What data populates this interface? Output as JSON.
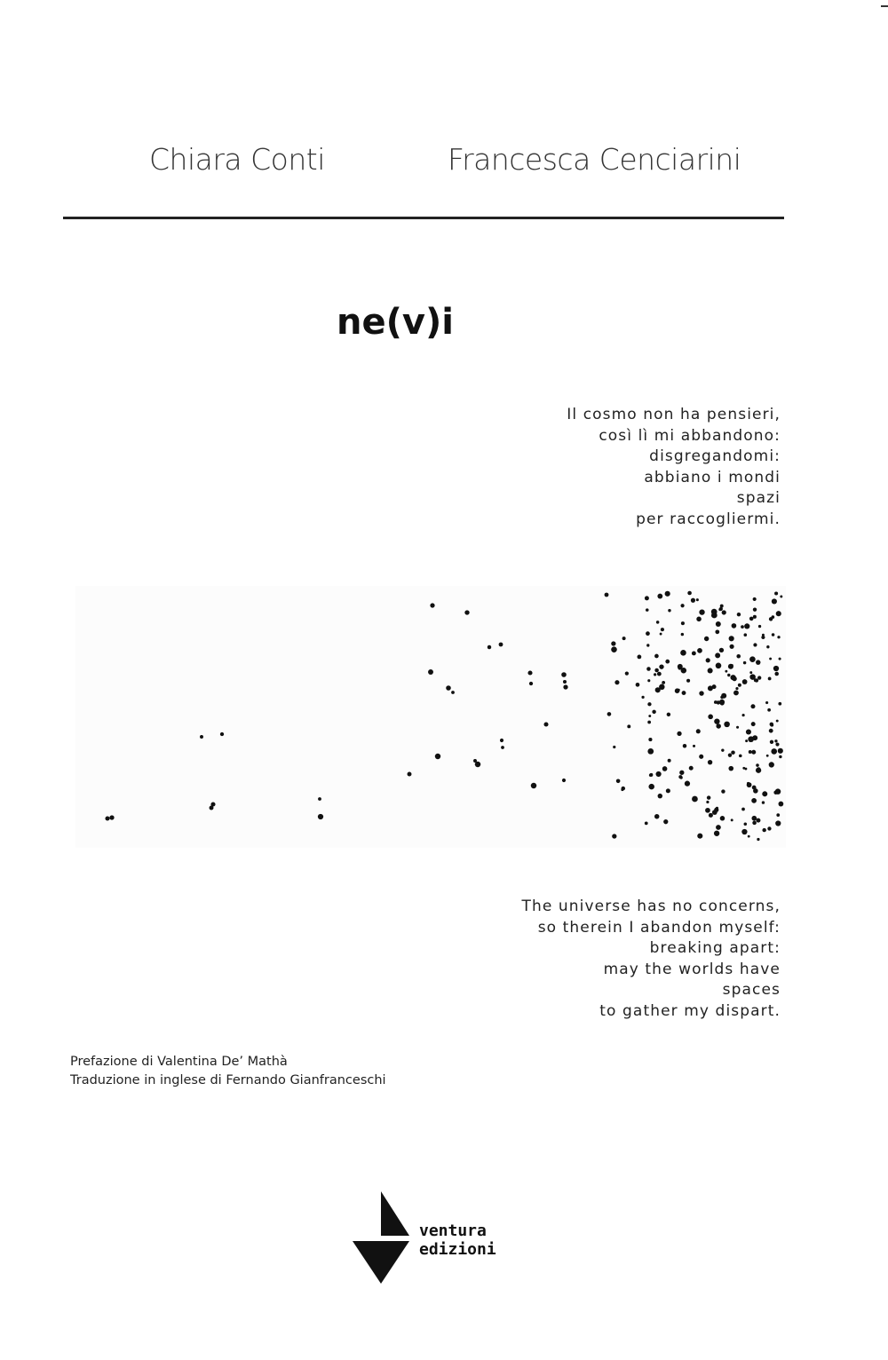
{
  "cover": {
    "authors": [
      "Chiara Conti",
      "Francesca Cenciarini"
    ],
    "title": "ne(v)i",
    "poem_italian": [
      "Il cosmo non ha pensieri,",
      "così lì mi abbandono:",
      "disgregandomi:",
      "abbiano i mondi",
      "spazi",
      "per raccogliermi."
    ],
    "poem_english": [
      "The universe has no concerns,",
      "so therein I abandon myself:",
      "breaking apart:",
      "may the worlds have",
      "spaces",
      "to gather my dispart."
    ],
    "preface": "Prefazione di Valentina De’ Mathà",
    "translation": "Traduzione in inglese di Fernando Gianfranceschi",
    "publisher": {
      "line1": "ventura",
      "line2": "edizioni"
    },
    "colors": {
      "ink": "#111111",
      "background": "#ffffff"
    }
  }
}
